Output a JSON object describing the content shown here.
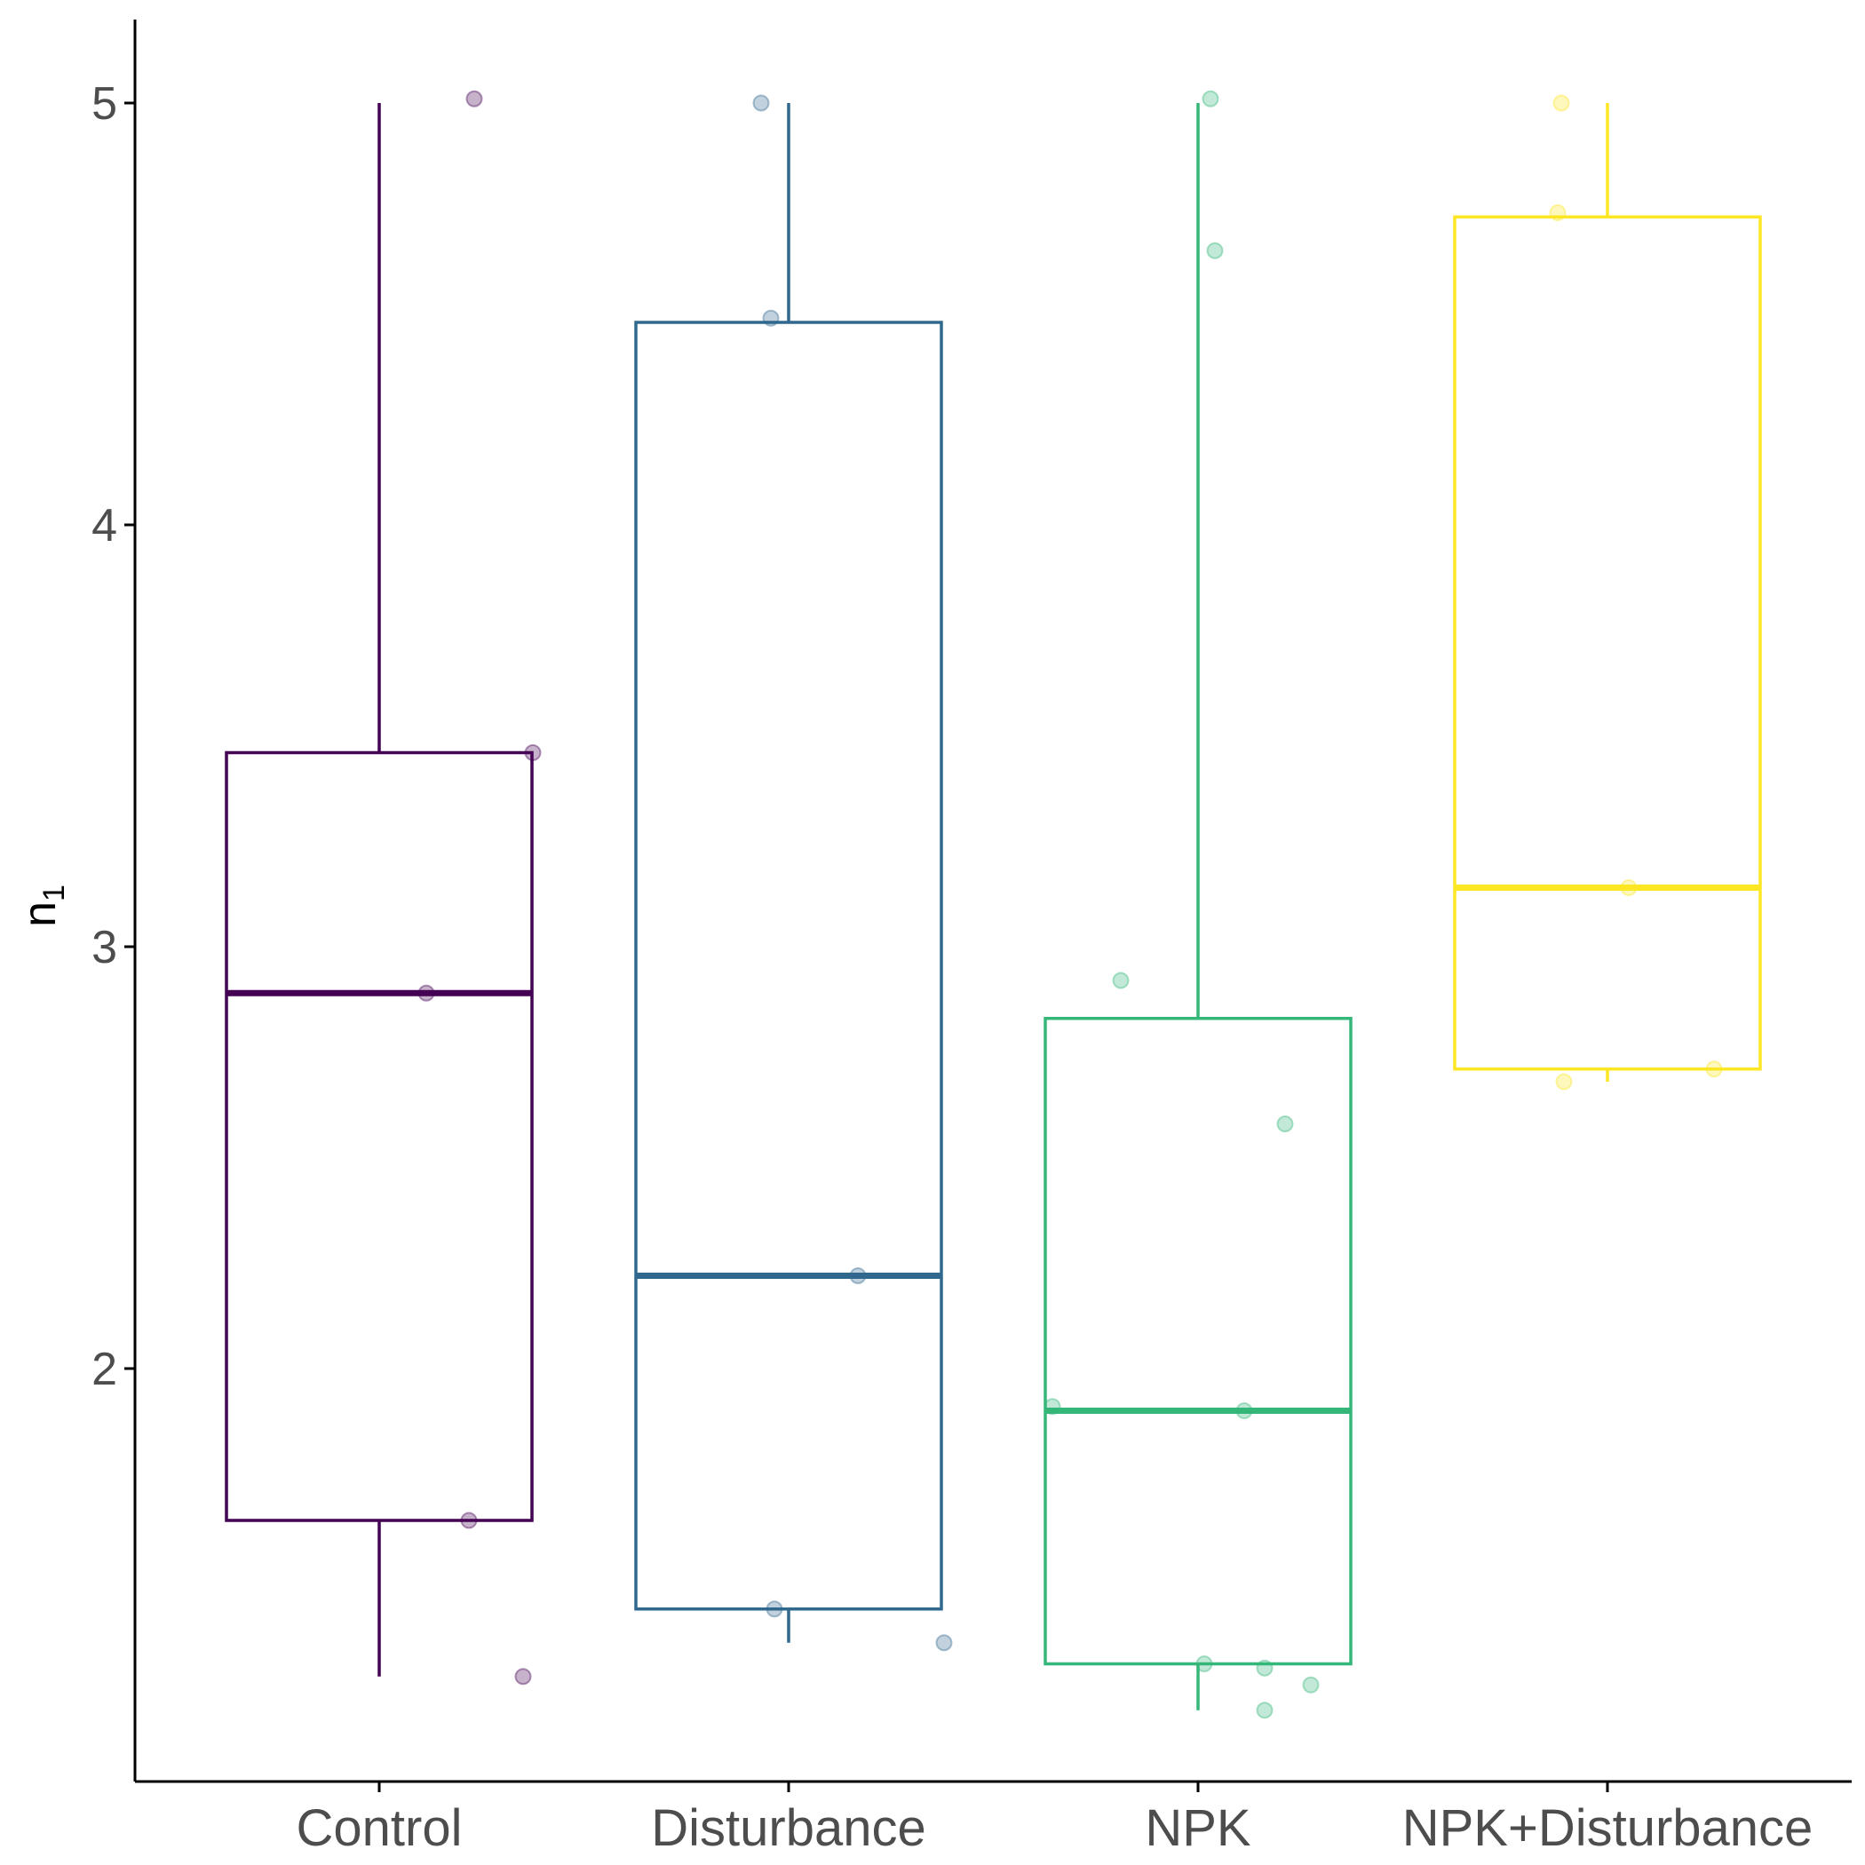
{
  "chart_data": {
    "type": "box",
    "ylabel": "n",
    "ylabel_subscript": "1",
    "xlabel": "",
    "ylim": [
      1.0,
      5.2
    ],
    "yticks": [
      "2",
      "3",
      "4",
      "5"
    ],
    "grid": false,
    "legend": "none",
    "categories": [
      "Control",
      "Disturbance",
      "NPK",
      "NPK+Disturbance"
    ],
    "colors": [
      "#440154",
      "#31688e",
      "#35b779",
      "#fde725"
    ],
    "boxes": [
      {
        "lower_whisker": 1.27,
        "q1": 1.64,
        "median": 2.89,
        "q3": 3.46,
        "upper_whisker": 5.0
      },
      {
        "lower_whisker": 1.35,
        "q1": 1.43,
        "median": 2.22,
        "q3": 4.48,
        "upper_whisker": 5.0
      },
      {
        "lower_whisker": 1.19,
        "q1": 1.3,
        "median": 1.9,
        "q3": 2.83,
        "upper_whisker": 5.0
      },
      {
        "lower_whisker": 2.68,
        "q1": 2.71,
        "median": 3.14,
        "q3": 4.73,
        "upper_whisker": 5.0
      }
    ],
    "points": [
      {
        "category": "Control",
        "values": [
          5.01,
          3.46,
          2.89,
          1.64,
          1.27
        ]
      },
      {
        "category": "Disturbance",
        "values": [
          5.0,
          4.49,
          2.22,
          1.43,
          1.35
        ]
      },
      {
        "category": "NPK",
        "values": [
          5.01,
          4.65,
          2.92,
          2.58,
          1.91,
          1.9,
          1.3,
          1.29,
          1.25,
          1.19
        ]
      },
      {
        "category": "NPK+Disturbance",
        "values": [
          5.0,
          4.74,
          3.14,
          2.71,
          2.68
        ]
      }
    ]
  }
}
